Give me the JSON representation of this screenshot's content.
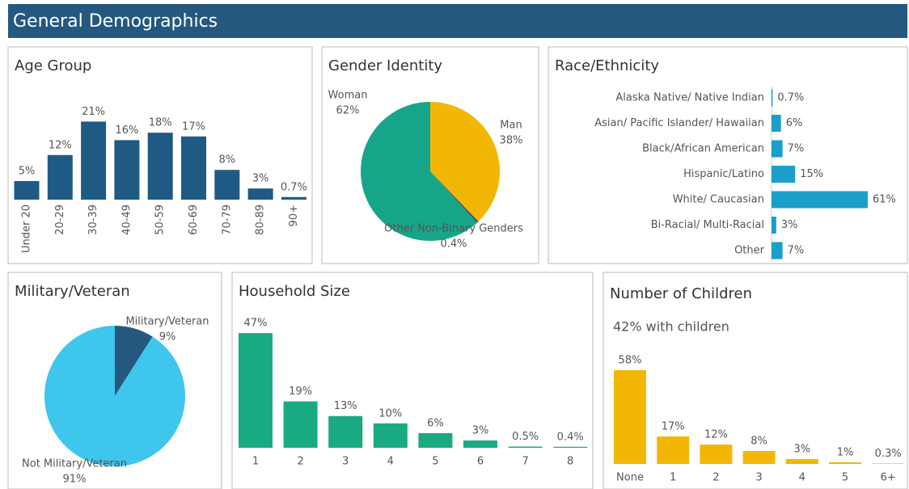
{
  "header": {
    "title": "General Demographics"
  },
  "chart_data": [
    {
      "type": "bar",
      "title": "Age Group",
      "categories": [
        "Under 20",
        "20-29",
        "30-39",
        "40-49",
        "50-59",
        "60-69",
        "70-79",
        "80-89",
        "90+"
      ],
      "values": [
        5,
        12,
        21,
        16,
        18,
        17,
        8,
        3,
        0.7
      ],
      "value_labels": [
        "5%",
        "12%",
        "21%",
        "16%",
        "18%",
        "17%",
        "8%",
        "3%",
        "0.7%"
      ],
      "color": "#1f5a85"
    },
    {
      "type": "pie",
      "title": "Gender Identity",
      "categories": [
        "Man",
        "Other Non-Binary Genders",
        "Woman"
      ],
      "values": [
        38,
        0.4,
        62
      ],
      "value_labels": [
        "38%",
        "0.4%",
        "62%"
      ],
      "colors": [
        "#f2b705",
        "#3a4a5a",
        "#17a589"
      ]
    },
    {
      "type": "hbar",
      "title": "Race/Ethnicity",
      "categories": [
        "Alaska Native/ Native Indian",
        "Asian/ Pacific Islander/ Hawaiian",
        "Black/African American",
        "Hispanic/Latino",
        "White/ Caucasian",
        "Bi-Racial/ Multi-Racial",
        "Other"
      ],
      "values": [
        0.7,
        6,
        7,
        15,
        61,
        3,
        7
      ],
      "value_labels": [
        "0.7%",
        "6%",
        "7%",
        "15%",
        "61%",
        "3%",
        "7%"
      ],
      "color": "#1a9fc9"
    },
    {
      "type": "pie",
      "title": "Military/Veteran",
      "categories": [
        "Military/Veteran",
        "Not Military/Veteran"
      ],
      "values": [
        9,
        91
      ],
      "value_labels": [
        "9%",
        "91%"
      ],
      "colors": [
        "#24587f",
        "#3ec6ec"
      ]
    },
    {
      "type": "bar",
      "title": "Household Size",
      "categories": [
        "1",
        "2",
        "3",
        "4",
        "5",
        "6",
        "7",
        "8"
      ],
      "values": [
        47,
        19,
        13,
        10,
        6,
        3,
        0.5,
        0.4
      ],
      "value_labels": [
        "47%",
        "19%",
        "13%",
        "10%",
        "6%",
        "3%",
        "0.5%",
        "0.4%"
      ],
      "color": "#1aaa82"
    },
    {
      "type": "bar",
      "title": "Number of Children",
      "subtitle": "42% with children",
      "categories": [
        "None",
        "1",
        "2",
        "3",
        "4",
        "5",
        "6+"
      ],
      "values": [
        58,
        17,
        12,
        8,
        3,
        1,
        0.3
      ],
      "value_labels": [
        "58%",
        "17%",
        "12%",
        "8%",
        "3%",
        "1%",
        "0.3%"
      ],
      "color": "#f2b705"
    }
  ]
}
